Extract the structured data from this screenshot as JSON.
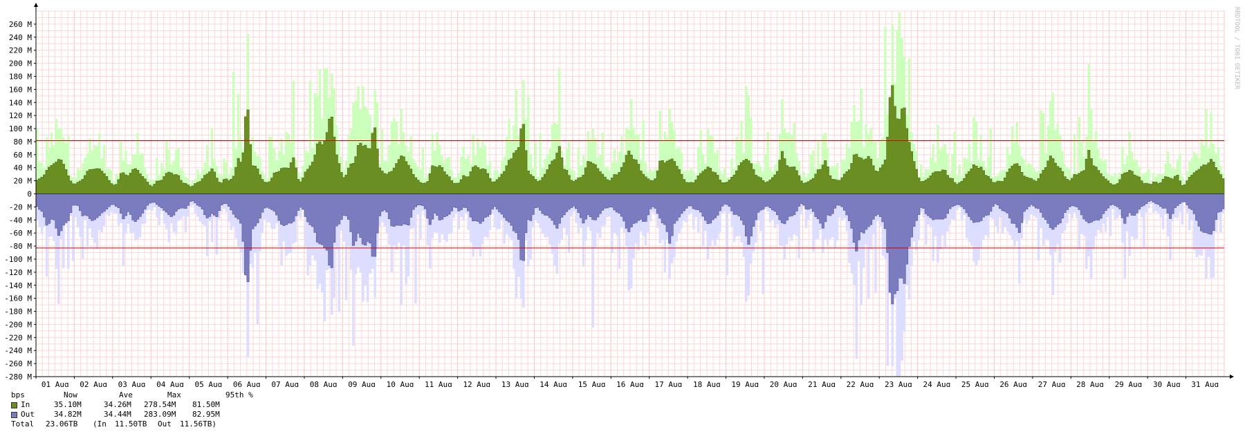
{
  "chart_data": {
    "type": "area",
    "unit": "bps",
    "ylim": [
      -280,
      280
    ],
    "y_ticks": [
      {
        "v": 260,
        "label": "260 M"
      },
      {
        "v": 240,
        "label": "240 M"
      },
      {
        "v": 220,
        "label": "220 M"
      },
      {
        "v": 200,
        "label": "200 M"
      },
      {
        "v": 180,
        "label": "180 M"
      },
      {
        "v": 160,
        "label": "160 M"
      },
      {
        "v": 140,
        "label": "140 M"
      },
      {
        "v": 120,
        "label": "120 M"
      },
      {
        "v": 100,
        "label": "100 M"
      },
      {
        "v": 80,
        "label": "80 M"
      },
      {
        "v": 60,
        "label": "60 M"
      },
      {
        "v": 40,
        "label": "40 M"
      },
      {
        "v": 20,
        "label": "20 M"
      },
      {
        "v": 0,
        "label": "0"
      },
      {
        "v": -20,
        "label": "-20 M"
      },
      {
        "v": -40,
        "label": "-40 M"
      },
      {
        "v": -60,
        "label": "-60 M"
      },
      {
        "v": -80,
        "label": "-80 M"
      },
      {
        "v": -100,
        "label": "-100 M"
      },
      {
        "v": -120,
        "label": "-120 M"
      },
      {
        "v": -140,
        "label": "-140 M"
      },
      {
        "v": -160,
        "label": "-160 M"
      },
      {
        "v": -180,
        "label": "-180 M"
      },
      {
        "v": -200,
        "label": "-200 M"
      },
      {
        "v": -220,
        "label": "-220 M"
      },
      {
        "v": -240,
        "label": "-240 M"
      },
      {
        "v": -260,
        "label": "-260 M"
      },
      {
        "v": -280,
        "label": "-280 M"
      }
    ],
    "x_labels": [
      "01 Aug",
      "02 Aug",
      "03 Aug",
      "04 Aug",
      "05 Aug",
      "06 Aug",
      "07 Aug",
      "08 Aug",
      "09 Aug",
      "10 Aug",
      "11 Aug",
      "12 Aug",
      "13 Aug",
      "14 Aug",
      "15 Aug",
      "16 Aug",
      "17 Aug",
      "18 Aug",
      "19 Aug",
      "20 Aug",
      "21 Aug",
      "22 Aug",
      "23 Aug",
      "24 Aug",
      "25 Aug",
      "26 Aug",
      "27 Aug",
      "28 Aug",
      "29 Aug",
      "30 Aug",
      "31 Aug"
    ],
    "x_days": 31,
    "percentile_95": {
      "in": 81.5,
      "out": -82.95
    },
    "series": [
      {
        "name": "In",
        "color": "#6b8e23",
        "max_color": "#ccffbb",
        "per_day_avg": [
          35,
          28,
          26,
          22,
          20,
          38,
          30,
          62,
          52,
          36,
          26,
          30,
          42,
          34,
          30,
          40,
          34,
          28,
          36,
          30,
          28,
          45,
          75,
          28,
          30,
          28,
          35,
          34,
          24,
          18,
          38
        ],
        "per_day_max": [
          115,
          75,
          60,
          45,
          42,
          245,
          95,
          192,
          165,
          130,
          75,
          85,
          160,
          110,
          100,
          145,
          130,
          100,
          165,
          100,
          90,
          162,
          278,
          105,
          110,
          80,
          155,
          130,
          95,
          65,
          130
        ],
        "peaks": [
          {
            "day": 5.5,
            "v": 167
          },
          {
            "day": 7.7,
            "v": 142
          },
          {
            "day": 8.8,
            "v": 122
          },
          {
            "day": 12.7,
            "v": 134
          },
          {
            "day": 22.3,
            "v": 200
          },
          {
            "day": 22.6,
            "v": 162
          }
        ]
      },
      {
        "name": "Out",
        "color": "#7b7bbf",
        "max_color": "#ddddff",
        "per_day_avg": [
          -35,
          -28,
          -26,
          -22,
          -20,
          -38,
          -30,
          -62,
          -52,
          -36,
          -26,
          -30,
          -42,
          -34,
          -30,
          -40,
          -34,
          -28,
          -36,
          -30,
          -28,
          -45,
          -75,
          -28,
          -30,
          -28,
          -35,
          -34,
          -24,
          -18,
          -38
        ],
        "per_day_max": [
          -115,
          -75,
          -60,
          -45,
          -42,
          -250,
          -95,
          -195,
          -165,
          -170,
          -75,
          -85,
          -160,
          -110,
          -205,
          -145,
          -130,
          -100,
          -165,
          -100,
          -90,
          -170,
          -283,
          -105,
          -110,
          -80,
          -155,
          -130,
          -95,
          -65,
          -130
        ],
        "peaks": [
          {
            "day": 5.5,
            "v": -170
          },
          {
            "day": 7.7,
            "v": -142
          },
          {
            "day": 8.8,
            "v": -122
          },
          {
            "day": 12.7,
            "v": -134
          },
          {
            "day": 22.3,
            "v": -203
          },
          {
            "day": 22.6,
            "v": -162
          }
        ]
      }
    ]
  },
  "side_label": "RRDTOOL / TOBI OETIKER",
  "legend": {
    "header": {
      "unit": "bps",
      "now": "Now",
      "ave": "Ave",
      "max": "Max",
      "p95": "95th %"
    },
    "rows": [
      {
        "name": "In",
        "color": "#6b8e23",
        "now": "35.10M",
        "ave": "34.26M",
        "max": "278.54M",
        "p95": "81.50M"
      },
      {
        "name": "Out",
        "color": "#7b7bbf",
        "now": "34.82M",
        "ave": "34.44M",
        "max": "283.09M",
        "p95": "82.95M"
      }
    ],
    "total": {
      "label": "Total",
      "value": "23.06TB",
      "in_label": "(In",
      "in_value": "11.50TB",
      "out_label": "Out",
      "out_value": "11.56TB)"
    }
  }
}
